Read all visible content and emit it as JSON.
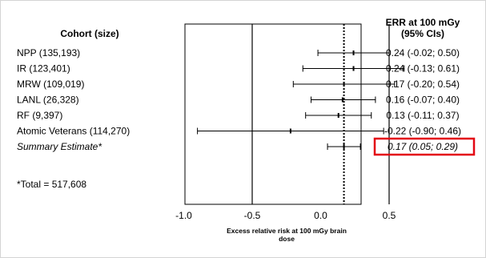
{
  "chart_data": {
    "type": "forest",
    "header_left": "Cohort (size)",
    "header_right": [
      "ERR at 100 mGy",
      "(95% CIs)"
    ],
    "xlabel": [
      "Excess relative risk at 100 mGy brain",
      "dose"
    ],
    "xlim": [
      -1.0,
      0.75
    ],
    "xticks": [
      -1.0,
      -0.5,
      0.0,
      0.5
    ],
    "xtick_labels": [
      "-1.0",
      "-0.5",
      "0.0",
      "0.5"
    ],
    "vertical_reference_lines": [
      -0.5,
      0.5
    ],
    "summary_line_value": 0.17,
    "rows": [
      {
        "label": "NPP (135,193)",
        "estimate": 0.24,
        "lower": -0.02,
        "upper": 0.5,
        "ci_text": "0.24 (-0.02; 0.50)",
        "italic": false
      },
      {
        "label": "IR (123,401)",
        "estimate": 0.24,
        "lower": -0.13,
        "upper": 0.61,
        "ci_text": "0.24 (-0.13; 0.61)",
        "italic": false
      },
      {
        "label": "MRW (109,019)",
        "estimate": 0.17,
        "lower": -0.2,
        "upper": 0.54,
        "ci_text": "0.17 (-0.20; 0.54)",
        "italic": false
      },
      {
        "label": "LANL (26,328)",
        "estimate": 0.16,
        "lower": -0.07,
        "upper": 0.4,
        "ci_text": "0.16 (-0.07; 0.40)",
        "italic": false
      },
      {
        "label": "RF (9,397)",
        "estimate": 0.13,
        "lower": -0.11,
        "upper": 0.37,
        "ci_text": "0.13 (-0.11; 0.37)",
        "italic": false
      },
      {
        "label": "Atomic Veterans (114,270)",
        "estimate": -0.22,
        "lower": -0.9,
        "upper": 0.46,
        "ci_text": "-0.22 (-0.90; 0.46)",
        "italic": false
      },
      {
        "label": "Summary Estimate*",
        "estimate": 0.17,
        "lower": 0.05,
        "upper": 0.29,
        "ci_text": "0.17 (0.05; 0.29)",
        "italic": true,
        "highlighted": true
      }
    ],
    "footnote": "*Total = 517,608",
    "colors": {
      "highlight_box": "#e30613",
      "lines": "#000000",
      "frame": "#d4d4d4"
    }
  }
}
